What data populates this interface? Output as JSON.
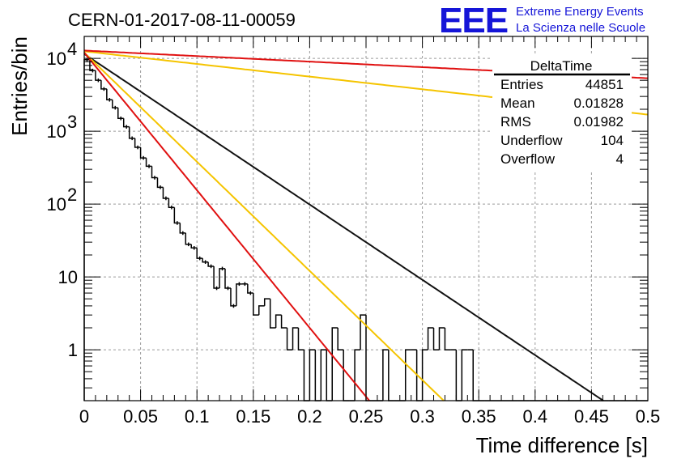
{
  "header": {
    "title": "CERN-01-2017-08-11-00059",
    "logo": "EEE",
    "logo_line1": "Extreme Energy Events",
    "logo_line2": "La Scienza nelle Scuole"
  },
  "stats": {
    "name": "DeltaTime",
    "rows": [
      {
        "label": "Entries",
        "value": "44851"
      },
      {
        "label": "Mean",
        "value": "0.01828"
      },
      {
        "label": "RMS",
        "value": "0.01982"
      },
      {
        "label": "Underflow",
        "value": "104"
      },
      {
        "label": "Overflow",
        "value": "4"
      }
    ]
  },
  "chart_data": {
    "type": "histogram",
    "xlabel": "Time difference [s]",
    "ylabel": "Entries/bin",
    "xlim": [
      0,
      0.5
    ],
    "ylim": [
      0.2,
      20000
    ],
    "yscale": "log",
    "grid": true,
    "x_ticks": [
      {
        "value": 0,
        "label": "0"
      },
      {
        "value": 0.05,
        "label": "0.05"
      },
      {
        "value": 0.1,
        "label": "0.1"
      },
      {
        "value": 0.15,
        "label": "0.15"
      },
      {
        "value": 0.2,
        "label": "0.2"
      },
      {
        "value": 0.25,
        "label": "0.25"
      },
      {
        "value": 0.3,
        "label": "0.3"
      },
      {
        "value": 0.35,
        "label": "0.35"
      },
      {
        "value": 0.4,
        "label": "0.4"
      },
      {
        "value": 0.45,
        "label": "0.45"
      },
      {
        "value": 0.5,
        "label": "0.5"
      }
    ],
    "y_ticks": [
      {
        "value": 1,
        "base": "1",
        "exp": ""
      },
      {
        "value": 10,
        "base": "10",
        "exp": ""
      },
      {
        "value": 100,
        "base": "10",
        "exp": "2"
      },
      {
        "value": 1000,
        "base": "10",
        "exp": "3"
      },
      {
        "value": 10000,
        "base": "10",
        "exp": "4"
      }
    ],
    "histogram": {
      "name": "DeltaTime",
      "color": "#000000",
      "bin_width": 0.005,
      "counts": [
        9600,
        6800,
        5000,
        3800,
        2700,
        2100,
        1500,
        1150,
        800,
        600,
        430,
        330,
        230,
        170,
        120,
        90,
        55,
        40,
        28,
        25,
        18,
        16,
        14,
        7,
        13,
        7,
        4,
        8,
        8,
        6,
        3,
        4,
        5,
        2,
        3,
        2,
        1,
        2,
        1,
        0,
        1,
        0,
        1,
        0,
        2,
        1,
        0,
        0,
        1,
        3,
        0,
        0,
        0,
        1,
        0,
        0,
        0,
        1,
        1,
        0,
        1,
        2,
        1,
        2,
        1,
        1,
        0,
        1,
        1,
        0,
        0,
        0,
        0,
        0,
        0,
        0,
        0,
        0,
        0,
        0,
        0,
        0,
        0,
        0,
        0,
        0,
        0,
        0,
        0,
        0,
        0,
        0,
        0,
        0,
        0,
        0,
        0,
        0,
        0,
        0
      ]
    },
    "curves": [
      {
        "color": "#111111",
        "y0": 11500,
        "slope": 23.8
      },
      {
        "color": "#f5c400",
        "y0": 12000,
        "slope": 34.5
      },
      {
        "color": "#e01010",
        "y0": 12000,
        "slope": 43.5
      },
      {
        "color": "#f5c400",
        "y0": 12500,
        "slope": 4.0
      },
      {
        "color": "#e01010",
        "y0": 12800,
        "slope": 1.75
      }
    ]
  }
}
